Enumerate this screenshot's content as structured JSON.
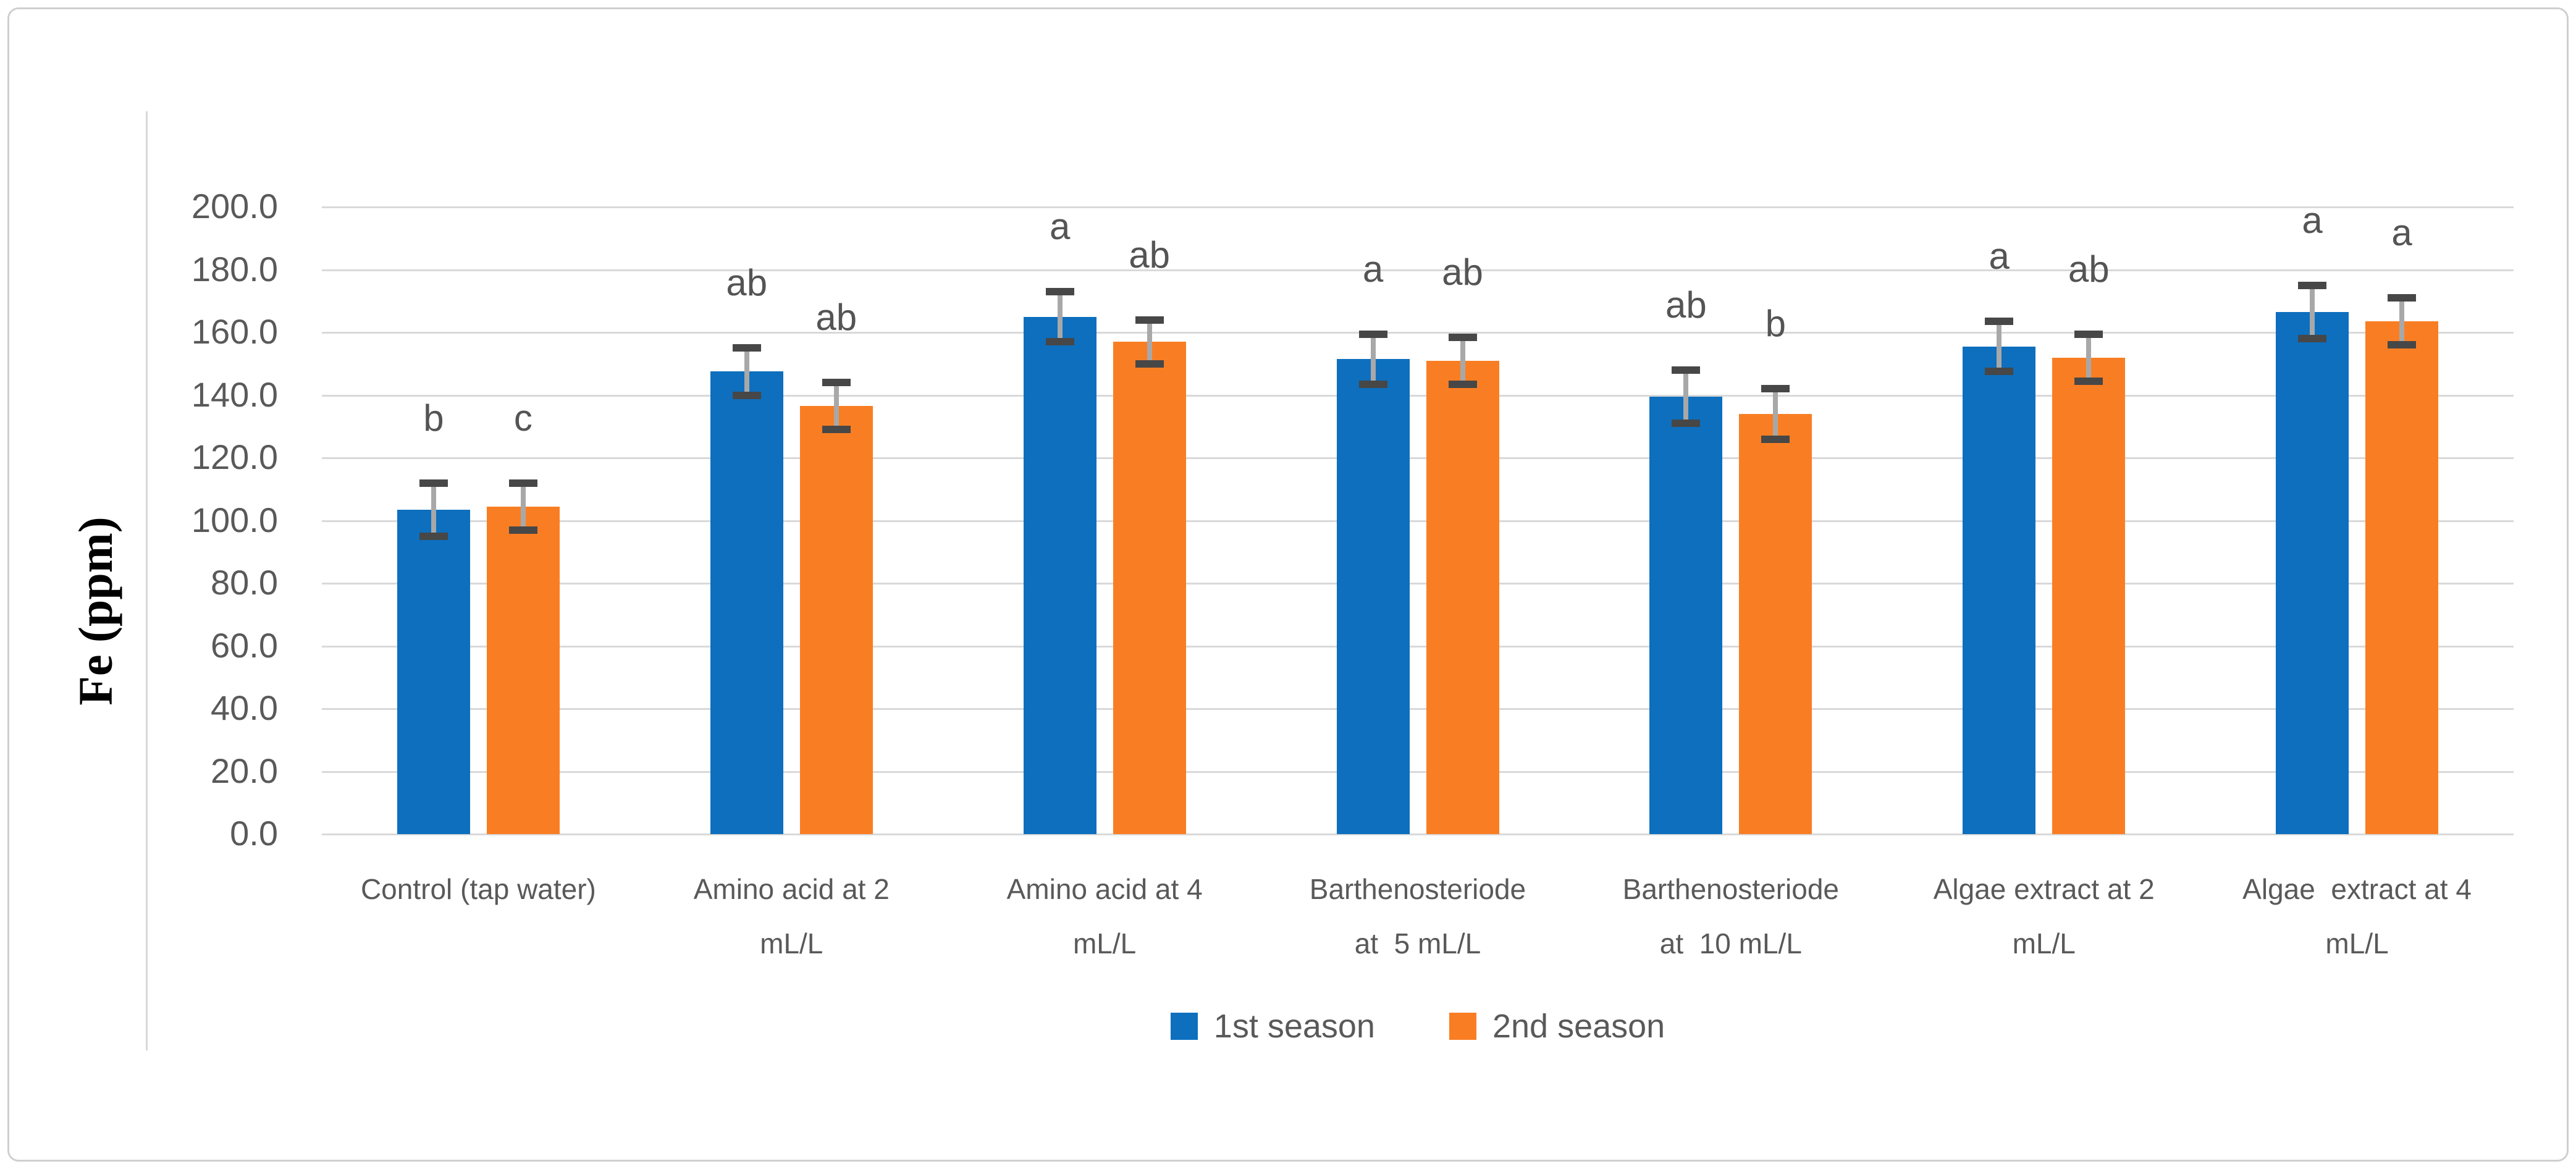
{
  "figure": {
    "y_axis_title": "Fe (ppm)"
  },
  "legend": {
    "items": [
      {
        "label": "1st season",
        "color": "#0D6FBE"
      },
      {
        "label": "2nd season",
        "color": "#F97E23"
      }
    ]
  },
  "colors": {
    "series1_blue": "#0D6FBE",
    "series2_orange": "#F97E23",
    "gridline": "#D9D9D9",
    "axis_text": "#595959",
    "error_bar_line": "#A8A8A8",
    "error_bar_cap": "#474747",
    "border": "#CFCFCF"
  },
  "chart_data": {
    "type": "bar",
    "title": "",
    "xlabel": "",
    "ylabel": "Fe (ppm)",
    "ylim": [
      0,
      200
    ],
    "ytick_step": 20,
    "ytick_labels": [
      "0.0",
      "20.0",
      "40.0",
      "60.0",
      "80.0",
      "100.0",
      "120.0",
      "140.0",
      "160.0",
      "180.0",
      "200.0"
    ],
    "grid": true,
    "legend_position": "bottom",
    "categories": [
      "Control (tap water)",
      "Amino acid at 2 mL/L",
      "Amino acid at 4 mL/L",
      "Barthenosteriode at 5 mL/L",
      "Barthenosteriode at 10 mL/L",
      "Algae extract at 2 mL/L",
      "Algae extract at 4 mL/L"
    ],
    "category_label_lines": [
      [
        "Control (tap water)",
        ""
      ],
      [
        "Amino acid at 2",
        "mL/L"
      ],
      [
        "Amino acid at 4",
        "mL/L"
      ],
      [
        "Barthenosteriode",
        "at  5 mL/L"
      ],
      [
        "Barthenosteriode",
        "at  10 mL/L"
      ],
      [
        "Algae extract at 2",
        "mL/L"
      ],
      [
        "Algae  extract at 4",
        "mL/L"
      ]
    ],
    "series": [
      {
        "name": "1st season",
        "color": "#0D6FBE",
        "values": [
          103.5,
          147.5,
          165.0,
          151.5,
          139.5,
          155.5,
          166.5
        ],
        "errors": [
          8.5,
          7.5,
          8.0,
          8.0,
          8.5,
          8.0,
          8.5
        ],
        "letters": [
          "b",
          "ab",
          "a",
          "a",
          "ab",
          "a",
          "a"
        ]
      },
      {
        "name": "2nd season",
        "color": "#F97E23",
        "values": [
          104.5,
          136.5,
          157.0,
          151.0,
          134.0,
          152.0,
          163.5
        ],
        "errors": [
          7.5,
          7.5,
          7.0,
          7.5,
          8.0,
          7.5,
          7.5
        ],
        "letters": [
          "c",
          "ab",
          "ab",
          "ab",
          "b",
          "ab",
          "a"
        ]
      }
    ]
  }
}
